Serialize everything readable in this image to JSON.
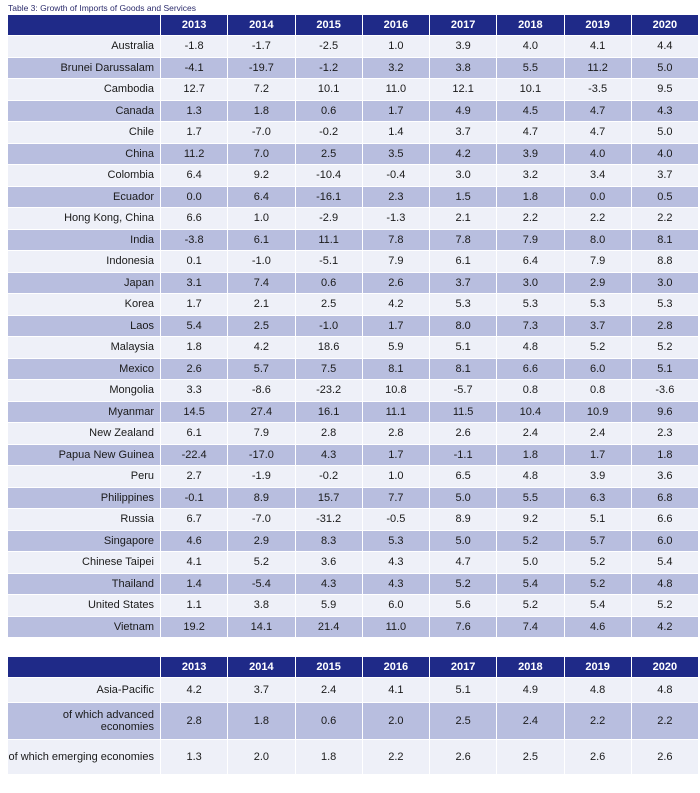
{
  "caption": "Table 3: Growth of Imports of Goods and Services",
  "years": [
    "2013",
    "2014",
    "2015",
    "2016",
    "2017",
    "2018",
    "2019",
    "2020"
  ],
  "colors": {
    "header": "#1f2a88",
    "row_light": "#eef0f8",
    "row_shaded": "#b8bedf"
  },
  "economies": [
    {
      "name": "Australia",
      "values": [
        "-1.8",
        "-1.7",
        "-2.5",
        "1.0",
        "3.9",
        "4.0",
        "4.1",
        "4.4"
      ]
    },
    {
      "name": "Brunei Darussalam",
      "values": [
        "-4.1",
        "-19.7",
        "-1.2",
        "3.2",
        "3.8",
        "5.5",
        "11.2",
        "5.0"
      ]
    },
    {
      "name": "Cambodia",
      "values": [
        "12.7",
        "7.2",
        "10.1",
        "11.0",
        "12.1",
        "10.1",
        "-3.5",
        "9.5"
      ]
    },
    {
      "name": "Canada",
      "values": [
        "1.3",
        "1.8",
        "0.6",
        "1.7",
        "4.9",
        "4.5",
        "4.7",
        "4.3"
      ]
    },
    {
      "name": "Chile",
      "values": [
        "1.7",
        "-7.0",
        "-0.2",
        "1.4",
        "3.7",
        "4.7",
        "4.7",
        "5.0"
      ]
    },
    {
      "name": "China",
      "values": [
        "11.2",
        "7.0",
        "2.5",
        "3.5",
        "4.2",
        "3.9",
        "4.0",
        "4.0"
      ]
    },
    {
      "name": "Colombia",
      "values": [
        "6.4",
        "9.2",
        "-10.4",
        "-0.4",
        "3.0",
        "3.2",
        "3.4",
        "3.7"
      ]
    },
    {
      "name": "Ecuador",
      "values": [
        "0.0",
        "6.4",
        "-16.1",
        "2.3",
        "1.5",
        "1.8",
        "0.0",
        "0.5"
      ]
    },
    {
      "name": "Hong Kong, China",
      "values": [
        "6.6",
        "1.0",
        "-2.9",
        "-1.3",
        "2.1",
        "2.2",
        "2.2",
        "2.2"
      ]
    },
    {
      "name": "India",
      "values": [
        "-3.8",
        "6.1",
        "11.1",
        "7.8",
        "7.8",
        "7.9",
        "8.0",
        "8.1"
      ]
    },
    {
      "name": "Indonesia",
      "values": [
        "0.1",
        "-1.0",
        "-5.1",
        "7.9",
        "6.1",
        "6.4",
        "7.9",
        "8.8"
      ]
    },
    {
      "name": "Japan",
      "values": [
        "3.1",
        "7.4",
        "0.6",
        "2.6",
        "3.7",
        "3.0",
        "2.9",
        "3.0"
      ]
    },
    {
      "name": "Korea",
      "values": [
        "1.7",
        "2.1",
        "2.5",
        "4.2",
        "5.3",
        "5.3",
        "5.3",
        "5.3"
      ]
    },
    {
      "name": "Laos",
      "values": [
        "5.4",
        "2.5",
        "-1.0",
        "1.7",
        "8.0",
        "7.3",
        "3.7",
        "2.8"
      ]
    },
    {
      "name": "Malaysia",
      "values": [
        "1.8",
        "4.2",
        "18.6",
        "5.9",
        "5.1",
        "4.8",
        "5.2",
        "5.2"
      ]
    },
    {
      "name": "Mexico",
      "values": [
        "2.6",
        "5.7",
        "7.5",
        "8.1",
        "8.1",
        "6.6",
        "6.0",
        "5.1"
      ]
    },
    {
      "name": "Mongolia",
      "values": [
        "3.3",
        "-8.6",
        "-23.2",
        "10.8",
        "-5.7",
        "0.8",
        "0.8",
        "-3.6"
      ]
    },
    {
      "name": "Myanmar",
      "values": [
        "14.5",
        "27.4",
        "16.1",
        "11.1",
        "11.5",
        "10.4",
        "10.9",
        "9.6"
      ]
    },
    {
      "name": "New Zealand",
      "values": [
        "6.1",
        "7.9",
        "2.8",
        "2.8",
        "2.6",
        "2.4",
        "2.4",
        "2.3"
      ]
    },
    {
      "name": "Papua New Guinea",
      "values": [
        "-22.4",
        "-17.0",
        "4.3",
        "1.7",
        "-1.1",
        "1.8",
        "1.7",
        "1.8"
      ]
    },
    {
      "name": "Peru",
      "values": [
        "2.7",
        "-1.9",
        "-0.2",
        "1.0",
        "6.5",
        "4.8",
        "3.9",
        "3.6"
      ]
    },
    {
      "name": "Philippines",
      "values": [
        "-0.1",
        "8.9",
        "15.7",
        "7.7",
        "5.0",
        "5.5",
        "6.3",
        "6.8"
      ]
    },
    {
      "name": "Russia",
      "values": [
        "6.7",
        "-7.0",
        "-31.2",
        "-0.5",
        "8.9",
        "9.2",
        "5.1",
        "6.6"
      ]
    },
    {
      "name": "Singapore",
      "values": [
        "4.6",
        "2.9",
        "8.3",
        "5.3",
        "5.0",
        "5.2",
        "5.7",
        "6.0"
      ]
    },
    {
      "name": "Chinese Taipei",
      "values": [
        "4.1",
        "5.2",
        "3.6",
        "4.3",
        "4.7",
        "5.0",
        "5.2",
        "5.4"
      ]
    },
    {
      "name": "Thailand",
      "values": [
        "1.4",
        "-5.4",
        "4.3",
        "4.3",
        "5.2",
        "5.4",
        "5.2",
        "4.8"
      ]
    },
    {
      "name": "United States",
      "values": [
        "1.1",
        "3.8",
        "5.9",
        "6.0",
        "5.6",
        "5.2",
        "5.4",
        "5.2"
      ]
    },
    {
      "name": "Vietnam",
      "values": [
        "19.2",
        "14.1",
        "21.4",
        "11.0",
        "7.6",
        "7.4",
        "4.6",
        "4.2"
      ]
    }
  ],
  "aggregates": [
    {
      "name": "Asia-Pacific",
      "values": [
        "4.2",
        "3.7",
        "2.4",
        "4.1",
        "5.1",
        "4.9",
        "4.8",
        "4.8"
      ]
    },
    {
      "name": "of which advanced economies",
      "values": [
        "2.8",
        "1.8",
        "0.6",
        "2.0",
        "2.5",
        "2.4",
        "2.2",
        "2.2"
      ]
    },
    {
      "name": "of which emerging economies",
      "values": [
        "1.3",
        "2.0",
        "1.8",
        "2.2",
        "2.6",
        "2.5",
        "2.6",
        "2.6"
      ]
    }
  ]
}
